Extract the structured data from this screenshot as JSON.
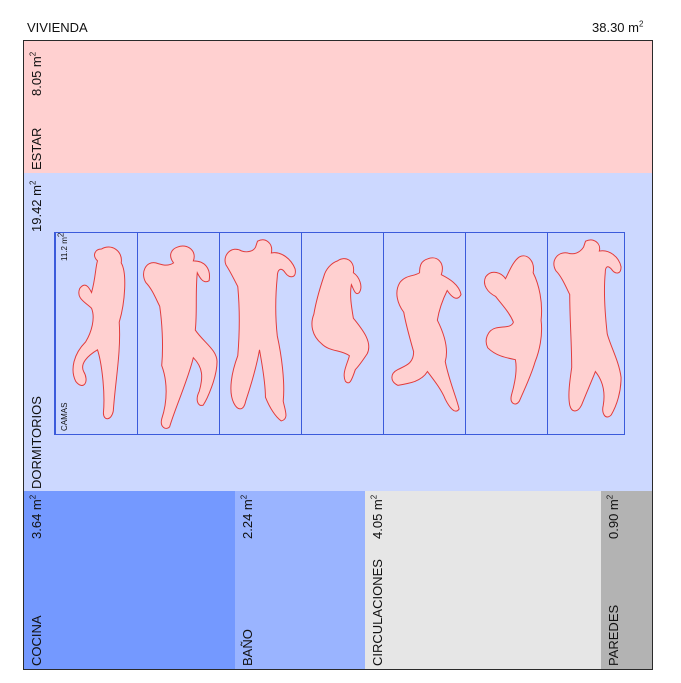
{
  "header": {
    "title": "VIVIENDA",
    "total_area": "38.30 m",
    "total_unit_sup": "2"
  },
  "zones": {
    "estar": {
      "label": "ESTAR",
      "area": "8.05 m",
      "sup": "2",
      "color": "#ffd0d0"
    },
    "dormitorios": {
      "label": "DORMITORIOS",
      "area": "19.42 m",
      "sup": "2",
      "color": "#ccd8ff"
    },
    "cocina": {
      "label": "COCINA",
      "area": "3.64 m",
      "sup": "2",
      "color": "#7499ff"
    },
    "bano": {
      "label": "BAÑO",
      "area": "2.24 m",
      "sup": "2",
      "color": "#9ab4ff"
    },
    "circulaciones": {
      "label": "CIRCULACIONES",
      "area": "4.05 m",
      "sup": "2",
      "color": "#e6e6e6"
    },
    "paredes": {
      "label": "PAREDES",
      "area": "0.90 m",
      "sup": "2",
      "color": "#b3b3b3"
    }
  },
  "camas": {
    "label": "CAMAS",
    "area": "11.2 m",
    "sup": "2",
    "bed_count": 7,
    "figure_fill": "#ffd0d0",
    "figure_stroke": "#e23b3b",
    "frame_color": "#3b5bdb"
  }
}
